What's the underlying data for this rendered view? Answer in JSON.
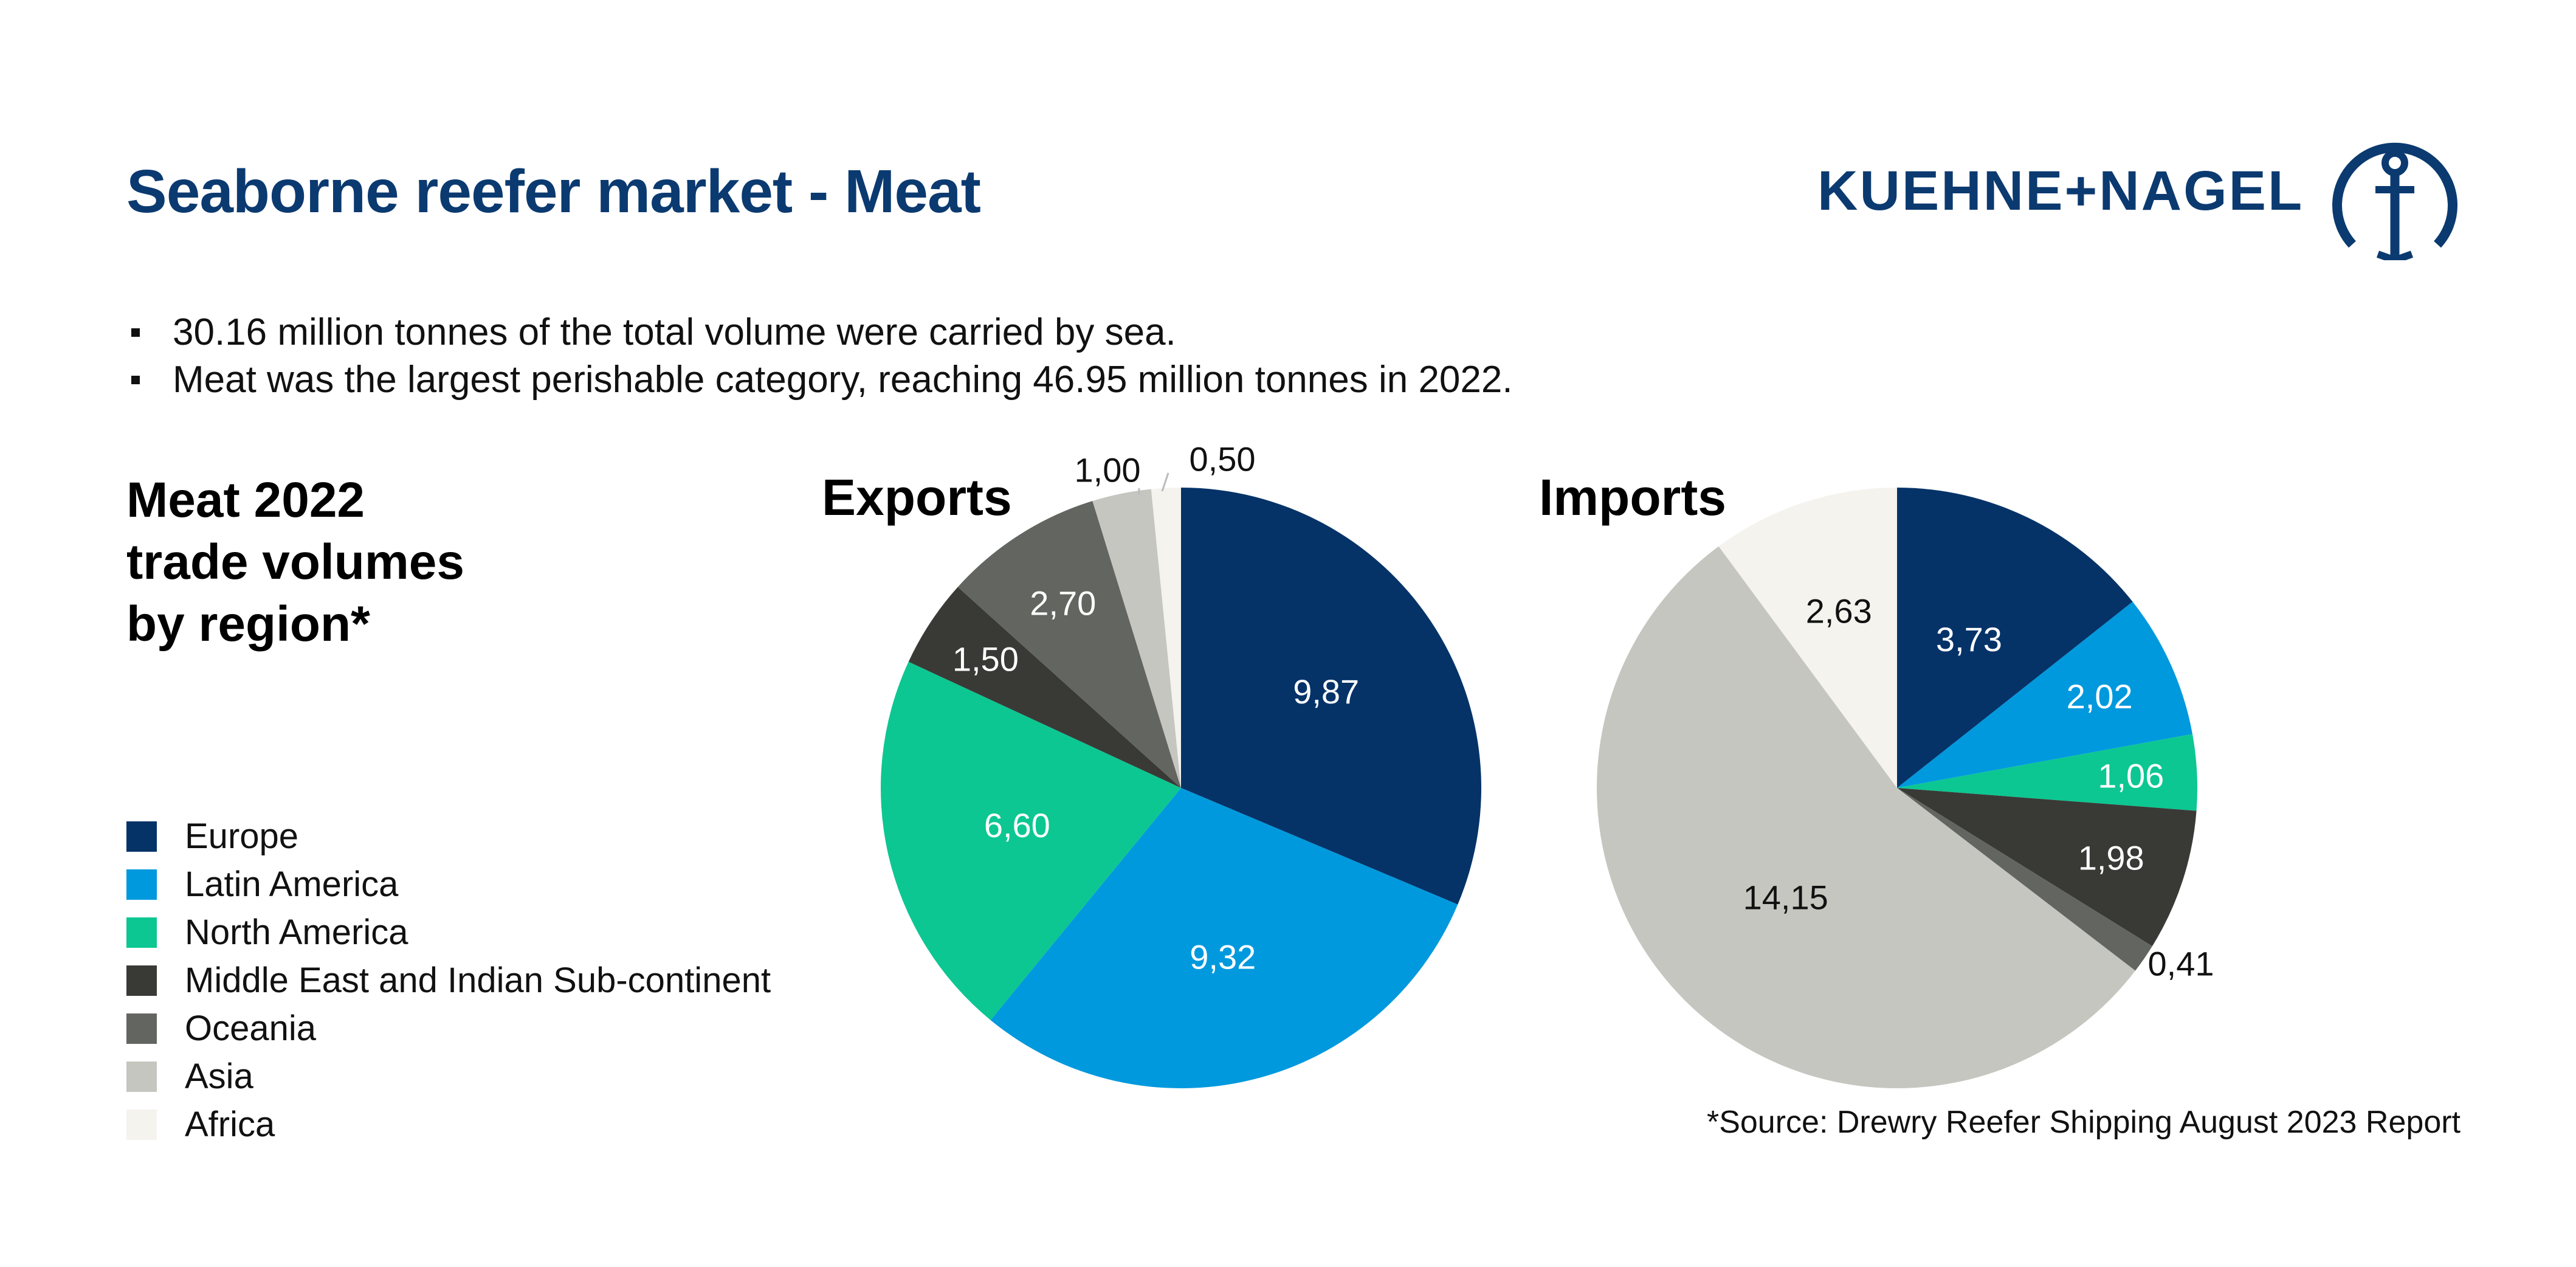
{
  "title": "Seaborne reefer market - Meat",
  "logo": {
    "text": "KUEHNE+NAGEL"
  },
  "bullets": [
    "30.16 million tonnes of the total volume were carried by sea.",
    "Meat was the largest perishable category, reaching 46.95 million tonnes in 2022."
  ],
  "side_heading": [
    "Meat 2022",
    "trade volumes",
    "by region*"
  ],
  "legend": [
    {
      "label": "Europe",
      "color": "#053368"
    },
    {
      "label": "Latin America",
      "color": "#0099dd"
    },
    {
      "label": "North America",
      "color": "#0cc792"
    },
    {
      "label": "Middle East and Indian Sub-continent",
      "color": "#393a36"
    },
    {
      "label": "Oceania",
      "color": "#636560"
    },
    {
      "label": "Asia",
      "color": "#c6c6c0"
    },
    {
      "label": "Africa",
      "color": "#f4f3ee"
    }
  ],
  "source": "*Source: Drewry Reefer Shipping August 2023 Report",
  "chart_data": [
    {
      "type": "pie",
      "title": "Exports",
      "categories": [
        "Europe",
        "Latin America",
        "North America",
        "Middle East and Indian Sub-continent",
        "Oceania",
        "Asia",
        "Africa"
      ],
      "values": [
        9.87,
        9.32,
        6.6,
        1.5,
        2.7,
        1.0,
        0.5
      ],
      "labels": [
        "9,87",
        "9,32",
        "6,60",
        "1,50",
        "2,70",
        "1,00",
        "0,50"
      ]
    },
    {
      "type": "pie",
      "title": "Imports",
      "categories": [
        "Europe",
        "Latin America",
        "North America",
        "Middle East and Indian Sub-continent",
        "Oceania",
        "Asia",
        "Africa"
      ],
      "values": [
        3.73,
        2.02,
        1.06,
        1.98,
        0.41,
        14.15,
        2.63
      ],
      "labels": [
        "3,73",
        "2,02",
        "1,06",
        "1,98",
        "0,41",
        "14,15",
        "2,63"
      ]
    }
  ]
}
